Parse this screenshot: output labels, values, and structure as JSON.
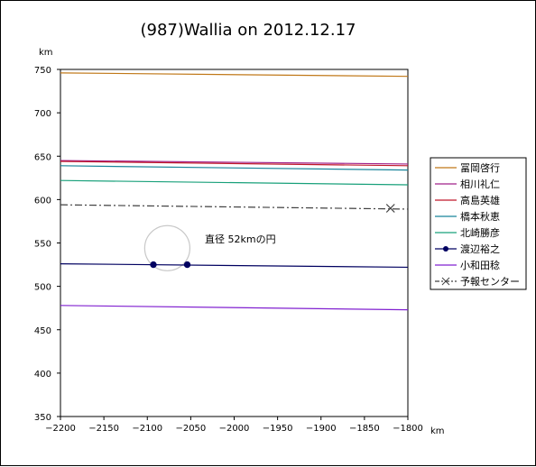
{
  "chart_data": {
    "type": "line",
    "title": "(987)Wallia on 2012.12.17",
    "x_unit": "km",
    "y_unit": "km",
    "xlim": [
      -2200,
      -1800
    ],
    "ylim": [
      350,
      750
    ],
    "x_ticks": [
      -2200,
      -2150,
      -2100,
      -2050,
      -2000,
      -1950,
      -1900,
      -1850,
      -1800
    ],
    "y_ticks": [
      350,
      400,
      450,
      500,
      550,
      600,
      650,
      700,
      750
    ],
    "x_tick_labels": [
      "−2200",
      "−2150",
      "−2100",
      "−2050",
      "−2000",
      "−1950",
      "−1900",
      "−1850",
      "−1800"
    ],
    "y_tick_labels": [
      "350",
      "400",
      "450",
      "500",
      "550",
      "600",
      "650",
      "700",
      "750"
    ],
    "grid": false,
    "legend_position": "right",
    "annotation": "直径 52kmの円",
    "circle": {
      "center": [
        -2077,
        544
      ],
      "diameter": 52,
      "color": "#c8c8c8"
    },
    "series": [
      {
        "name": "冨岡啓行",
        "color": "#c07818",
        "style": "solid",
        "x": [
          -2200,
          -1800
        ],
        "y": [
          746,
          742
        ]
      },
      {
        "name": "相川礼仁",
        "color": "#a0208a",
        "style": "solid",
        "x": [
          -2200,
          -1800
        ],
        "y": [
          645,
          641
        ]
      },
      {
        "name": "高島英雄",
        "color": "#c0182a",
        "style": "solid",
        "x": [
          -2200,
          -1800
        ],
        "y": [
          644,
          639
        ]
      },
      {
        "name": "橋本秋恵",
        "color": "#18849a",
        "style": "solid",
        "x": [
          -2200,
          -1800
        ],
        "y": [
          639,
          634
        ]
      },
      {
        "name": "北崎勝彦",
        "color": "#18a07a",
        "style": "solid",
        "x": [
          -2200,
          -1800
        ],
        "y": [
          622,
          617
        ]
      },
      {
        "name": "渡辺裕之",
        "color": "#000060",
        "style": "solid",
        "marker": "dot",
        "x": [
          -2200,
          -1800
        ],
        "y": [
          526,
          522
        ],
        "points": [
          [
            -2093,
            525
          ],
          [
            -2054,
            525
          ]
        ]
      },
      {
        "name": "小和田稔",
        "color": "#8020d0",
        "style": "solid",
        "x": [
          -2200,
          -1800
        ],
        "y": [
          478,
          473
        ]
      },
      {
        "name": "予報センター",
        "color": "#404040",
        "style": "dashdot",
        "marker": "x",
        "x": [
          -2200,
          -1800
        ],
        "y": [
          594,
          589
        ],
        "points": [
          [
            -1820,
            590
          ]
        ]
      }
    ]
  }
}
